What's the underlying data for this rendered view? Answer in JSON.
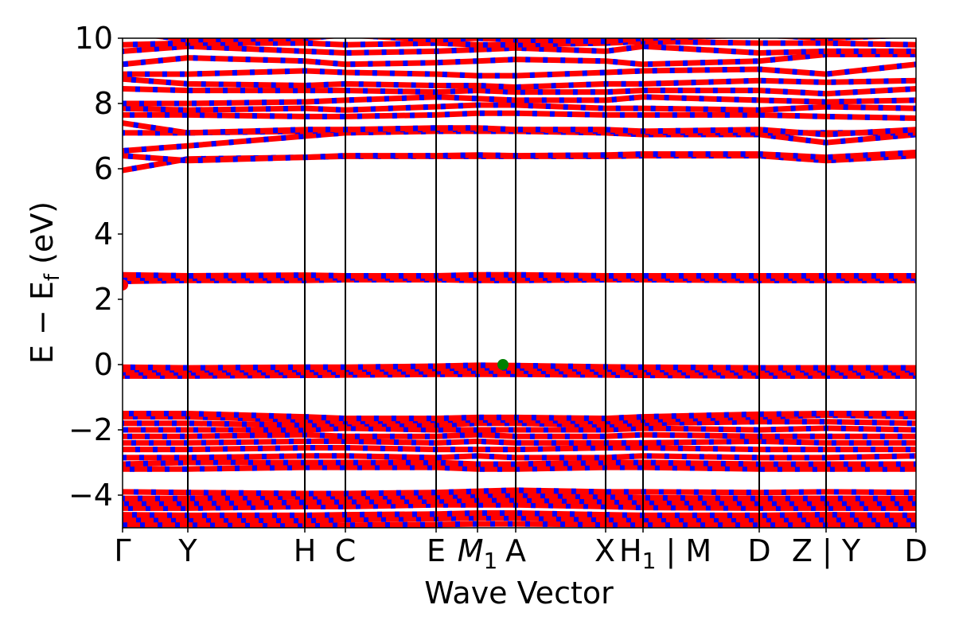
{
  "chart_data": {
    "type": "line",
    "title": "",
    "xlabel": "Wave Vector",
    "ylabel": "E − E",
    "ylabel_sub": "f",
    "ylabel_unit": " (eV)",
    "ylim": [
      -5,
      10
    ],
    "yticks": [
      -4,
      -2,
      0,
      2,
      4,
      6,
      8,
      10
    ],
    "ytick_labels": [
      "−4",
      "−2",
      "0",
      "2",
      "4",
      "6",
      "8",
      "10"
    ],
    "grid": false,
    "colors": {
      "band": "#ff0000",
      "projection": "#0000ff",
      "vbm": "#008000",
      "cbm": "#ff0000",
      "kline": "#000000"
    },
    "kpoints": [
      {
        "label": "Γ",
        "k": 0.0
      },
      {
        "label": "Y",
        "k": 0.82
      },
      {
        "label": "H",
        "k": 2.29
      },
      {
        "label": "C",
        "k": 2.8
      },
      {
        "label": "E",
        "k": 3.94
      },
      {
        "label": "M",
        "sub": "1",
        "italic": true,
        "k": 4.46
      },
      {
        "label": "A",
        "k": 4.94
      },
      {
        "label": "X",
        "k": 6.07
      },
      {
        "label": "H",
        "sub": "1",
        "after": " | M",
        "k": 6.54
      },
      {
        "label": "D",
        "k": 8.0
      },
      {
        "label": "Z | Y",
        "k": 8.84
      },
      {
        "label": "D",
        "k": 9.97
      }
    ],
    "bands": [
      [
        -4.9,
        -4.9,
        -4.92,
        -4.92,
        -4.9,
        -4.88,
        -4.88,
        -4.9,
        -4.9,
        -4.9,
        -4.9,
        -4.9
      ],
      [
        -4.75,
        -4.75,
        -4.78,
        -4.75,
        -4.72,
        -4.7,
        -4.7,
        -4.75,
        -4.75,
        -4.75,
        -4.75,
        -4.75
      ],
      [
        -4.6,
        -4.62,
        -4.62,
        -4.6,
        -4.58,
        -4.55,
        -4.55,
        -4.6,
        -4.62,
        -4.62,
        -4.6,
        -4.62
      ],
      [
        -4.4,
        -4.4,
        -4.35,
        -4.35,
        -4.3,
        -4.3,
        -4.3,
        -4.35,
        -4.38,
        -4.4,
        -4.4,
        -4.4
      ],
      [
        -4.25,
        -4.25,
        -4.22,
        -4.2,
        -4.18,
        -4.15,
        -4.15,
        -4.2,
        -4.22,
        -4.25,
        -4.25,
        -4.25
      ],
      [
        -4.1,
        -4.1,
        -4.05,
        -4.05,
        -4.05,
        -4.0,
        -4.0,
        -4.05,
        -4.08,
        -4.1,
        -4.1,
        -4.1
      ],
      [
        -3.9,
        -3.92,
        -3.95,
        -3.95,
        -3.92,
        -3.88,
        -3.85,
        -3.9,
        -3.9,
        -3.92,
        -3.9,
        -3.92
      ],
      [
        -3.2,
        -3.2,
        -3.15,
        -3.15,
        -3.15,
        -3.2,
        -3.2,
        -3.15,
        -3.15,
        -3.2,
        -3.2,
        -3.2
      ],
      [
        -3.05,
        -3.0,
        -3.0,
        -3.0,
        -3.0,
        -3.05,
        -3.05,
        -3.0,
        -3.0,
        -3.05,
        -3.05,
        -3.05
      ],
      [
        -2.85,
        -2.85,
        -2.8,
        -2.8,
        -2.85,
        -2.8,
        -2.85,
        -2.85,
        -2.8,
        -2.85,
        -2.85,
        -2.8
      ],
      [
        -2.6,
        -2.6,
        -2.55,
        -2.55,
        -2.6,
        -2.6,
        -2.6,
        -2.55,
        -2.55,
        -2.6,
        -2.6,
        -2.6
      ],
      [
        -2.4,
        -2.4,
        -2.35,
        -2.35,
        -2.4,
        -2.35,
        -2.4,
        -2.4,
        -2.4,
        -2.35,
        -2.4,
        -2.4
      ],
      [
        -2.2,
        -2.2,
        -2.15,
        -2.2,
        -2.2,
        -2.15,
        -2.2,
        -2.2,
        -2.15,
        -2.2,
        -2.2,
        -2.2
      ],
      [
        -2.0,
        -2.0,
        -2.0,
        -1.95,
        -2.0,
        -2.0,
        -2.0,
        -2.0,
        -1.95,
        -2.0,
        -1.95,
        -2.0
      ],
      [
        -1.8,
        -1.8,
        -1.85,
        -1.8,
        -1.85,
        -1.8,
        -1.8,
        -1.85,
        -1.8,
        -1.75,
        -1.75,
        -1.8
      ],
      [
        -1.6,
        -1.6,
        -1.7,
        -1.75,
        -1.7,
        -1.7,
        -1.7,
        -1.75,
        -1.7,
        -1.6,
        -1.55,
        -1.6
      ],
      [
        -1.5,
        -1.5,
        -1.6,
        -1.65,
        -1.65,
        -1.62,
        -1.62,
        -1.65,
        -1.6,
        -1.52,
        -1.5,
        -1.5
      ],
      [
        -0.35,
        -0.35,
        -0.33,
        -0.32,
        -0.3,
        -0.3,
        -0.3,
        -0.32,
        -0.33,
        -0.35,
        -0.35,
        -0.35
      ],
      [
        -0.25,
        -0.25,
        -0.24,
        -0.23,
        -0.22,
        -0.2,
        -0.2,
        -0.23,
        -0.24,
        -0.25,
        -0.25,
        -0.25
      ],
      [
        -0.15,
        -0.16,
        -0.15,
        -0.14,
        -0.12,
        -0.1,
        -0.1,
        -0.14,
        -0.15,
        -0.16,
        -0.16,
        -0.16
      ],
      [
        -0.08,
        -0.1,
        -0.08,
        -0.08,
        -0.05,
        -0.02,
        -0.03,
        -0.07,
        -0.08,
        -0.1,
        -0.1,
        -0.1
      ],
      [
        2.55,
        2.58,
        2.58,
        2.6,
        2.6,
        2.58,
        2.58,
        2.6,
        2.6,
        2.58,
        2.58,
        2.58
      ],
      [
        2.65,
        2.65,
        2.66,
        2.66,
        2.65,
        2.65,
        2.65,
        2.65,
        2.65,
        2.65,
        2.65,
        2.65
      ],
      [
        2.75,
        2.72,
        2.74,
        2.72,
        2.72,
        2.75,
        2.75,
        2.72,
        2.72,
        2.72,
        2.72,
        2.72
      ],
      [
        5.95,
        6.3,
        6.35,
        6.38,
        6.38,
        6.38,
        6.38,
        6.38,
        6.4,
        6.4,
        6.25,
        6.4
      ],
      [
        6.4,
        6.25,
        6.35,
        6.4,
        6.4,
        6.42,
        6.4,
        6.42,
        6.45,
        6.45,
        6.35,
        6.5
      ],
      [
        6.55,
        6.7,
        7.0,
        7.1,
        7.15,
        7.15,
        7.15,
        7.1,
        7.05,
        7.05,
        6.8,
        7.05
      ],
      [
        7.1,
        7.1,
        7.15,
        7.2,
        7.2,
        7.22,
        7.2,
        7.15,
        7.12,
        7.1,
        7.1,
        7.1
      ],
      [
        7.4,
        7.1,
        7.2,
        7.2,
        7.25,
        7.25,
        7.2,
        7.2,
        7.15,
        7.2,
        7.05,
        7.2
      ],
      [
        7.65,
        7.65,
        7.6,
        7.6,
        7.65,
        7.7,
        7.7,
        7.65,
        7.65,
        7.65,
        7.6,
        7.55
      ],
      [
        7.85,
        7.8,
        7.85,
        7.8,
        7.9,
        7.95,
        7.95,
        7.85,
        7.85,
        7.8,
        7.9,
        7.85
      ],
      [
        8.0,
        8.0,
        8.05,
        8.1,
        8.2,
        8.15,
        8.1,
        8.1,
        8.2,
        8.1,
        8.05,
        8.1
      ],
      [
        8.45,
        8.4,
        8.4,
        8.4,
        8.35,
        8.4,
        8.35,
        8.35,
        8.4,
        8.4,
        8.3,
        8.45
      ],
      [
        8.75,
        8.6,
        8.55,
        8.6,
        8.55,
        8.55,
        8.5,
        8.6,
        8.6,
        8.7,
        8.65,
        8.7
      ],
      [
        8.9,
        8.9,
        9.0,
        8.95,
        8.9,
        8.85,
        8.85,
        8.95,
        9.0,
        9.05,
        8.9,
        9.2
      ],
      [
        9.2,
        9.4,
        9.3,
        9.2,
        9.25,
        9.3,
        9.35,
        9.3,
        9.2,
        9.3,
        9.5,
        9.5
      ],
      [
        9.6,
        9.75,
        9.6,
        9.55,
        9.6,
        9.65,
        9.7,
        9.6,
        9.75,
        9.55,
        9.6,
        9.6
      ],
      [
        9.8,
        9.85,
        9.85,
        9.8,
        9.85,
        9.8,
        9.8,
        9.85,
        9.9,
        9.85,
        9.85,
        9.8
      ],
      [
        10.2,
        9.95,
        10.0,
        10.1,
        9.95,
        10.0,
        9.95,
        9.9,
        10.0,
        10.1,
        10.0,
        10.1
      ]
    ],
    "markers": [
      {
        "name": "vbm",
        "k": 4.78,
        "energy": 0.0,
        "color": "#008000"
      },
      {
        "name": "cbm",
        "k": 0.0,
        "energy": 2.44,
        "color": "#ff0000"
      }
    ]
  }
}
